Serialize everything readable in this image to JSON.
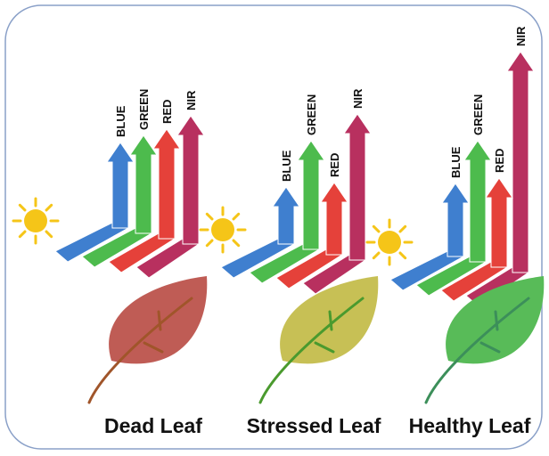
{
  "panels": [
    {
      "label": "Dead Leaf",
      "bands": [
        "BLUE",
        "GREEN",
        "RED",
        "NIR"
      ]
    },
    {
      "label": "Stressed Leaf",
      "bands": [
        "BLUE",
        "GREEN",
        "RED",
        "NIR"
      ]
    },
    {
      "label": "Healthy Leaf",
      "bands": [
        "BLUE",
        "GREEN",
        "RED",
        "NIR"
      ]
    }
  ]
}
